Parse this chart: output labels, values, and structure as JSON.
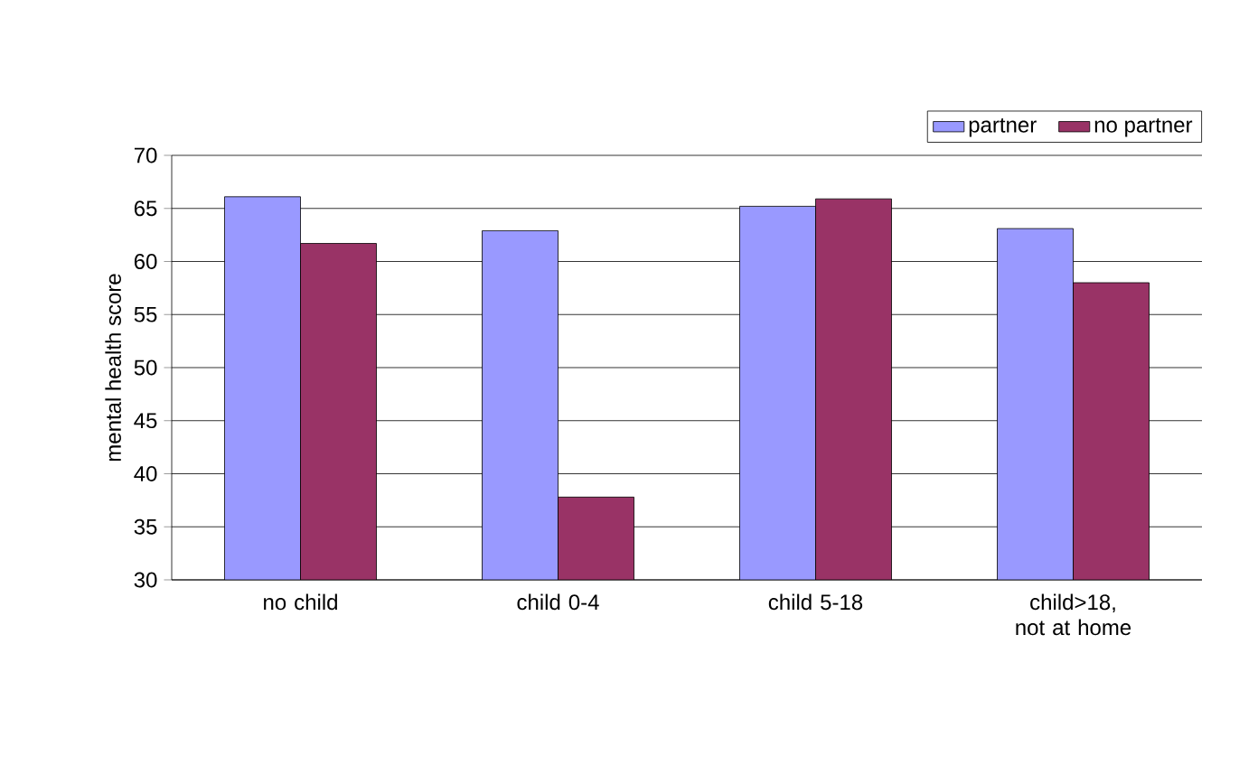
{
  "chart_data": {
    "type": "bar",
    "ylabel": "mental health score",
    "categories": [
      "no child",
      "child 0-4",
      "child 5-18",
      "child>18, not at home"
    ],
    "series": [
      {
        "name": "partner",
        "color": "#9999ff",
        "values": [
          66.1,
          62.9,
          65.2,
          63.1
        ]
      },
      {
        "name": "no partner",
        "color": "#993366",
        "values": [
          61.7,
          37.8,
          65.9,
          58.0
        ]
      }
    ],
    "ylim": [
      30,
      70
    ],
    "yticks": [
      30,
      35,
      40,
      45,
      50,
      55,
      60,
      65,
      70
    ],
    "grid": "y",
    "legend": "top right"
  }
}
